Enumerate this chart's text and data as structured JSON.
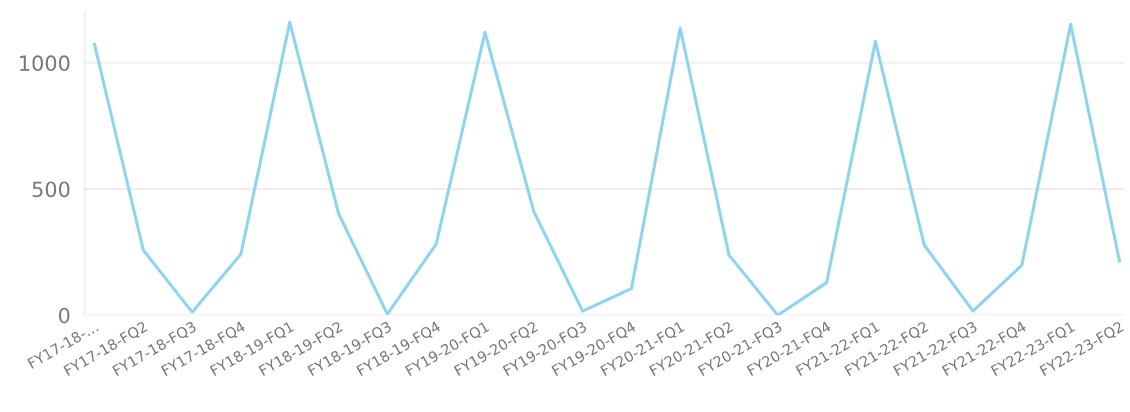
{
  "chart_data": {
    "type": "line",
    "categories": [
      "FY17-18-…",
      "FY17-18-FQ2",
      "FY17-18-FQ3",
      "FY17-18-FQ4",
      "FY18-19-FQ1",
      "FY18-19-FQ2",
      "FY18-19-FQ3",
      "FY18-19-FQ4",
      "FY19-20-FQ1",
      "FY19-20-FQ2",
      "FY19-20-FQ3",
      "FY19-20-FQ4",
      "FY20-21-FQ1",
      "FY20-21-FQ2",
      "FY20-21-FQ3",
      "FY20-21-FQ4",
      "FY21-22-FQ1",
      "FY21-22-FQ2",
      "FY21-22-FQ3",
      "FY21-22-FQ4",
      "FY22-23-FQ1",
      "FY22-23-FQ2"
    ],
    "series": [
      {
        "color": "#8dd5ee",
        "values": [
          1073,
          258,
          12,
          242,
          1161,
          403,
          4,
          282,
          1121,
          411,
          16,
          105,
          1137,
          238,
          0,
          129,
          1085,
          278,
          16,
          198,
          1153,
          214
        ]
      }
    ],
    "ylim": [
      0,
      1200
    ],
    "yticks": [
      0,
      500,
      1000
    ],
    "grid": "y",
    "marker": "none",
    "line_style": "solid"
  }
}
